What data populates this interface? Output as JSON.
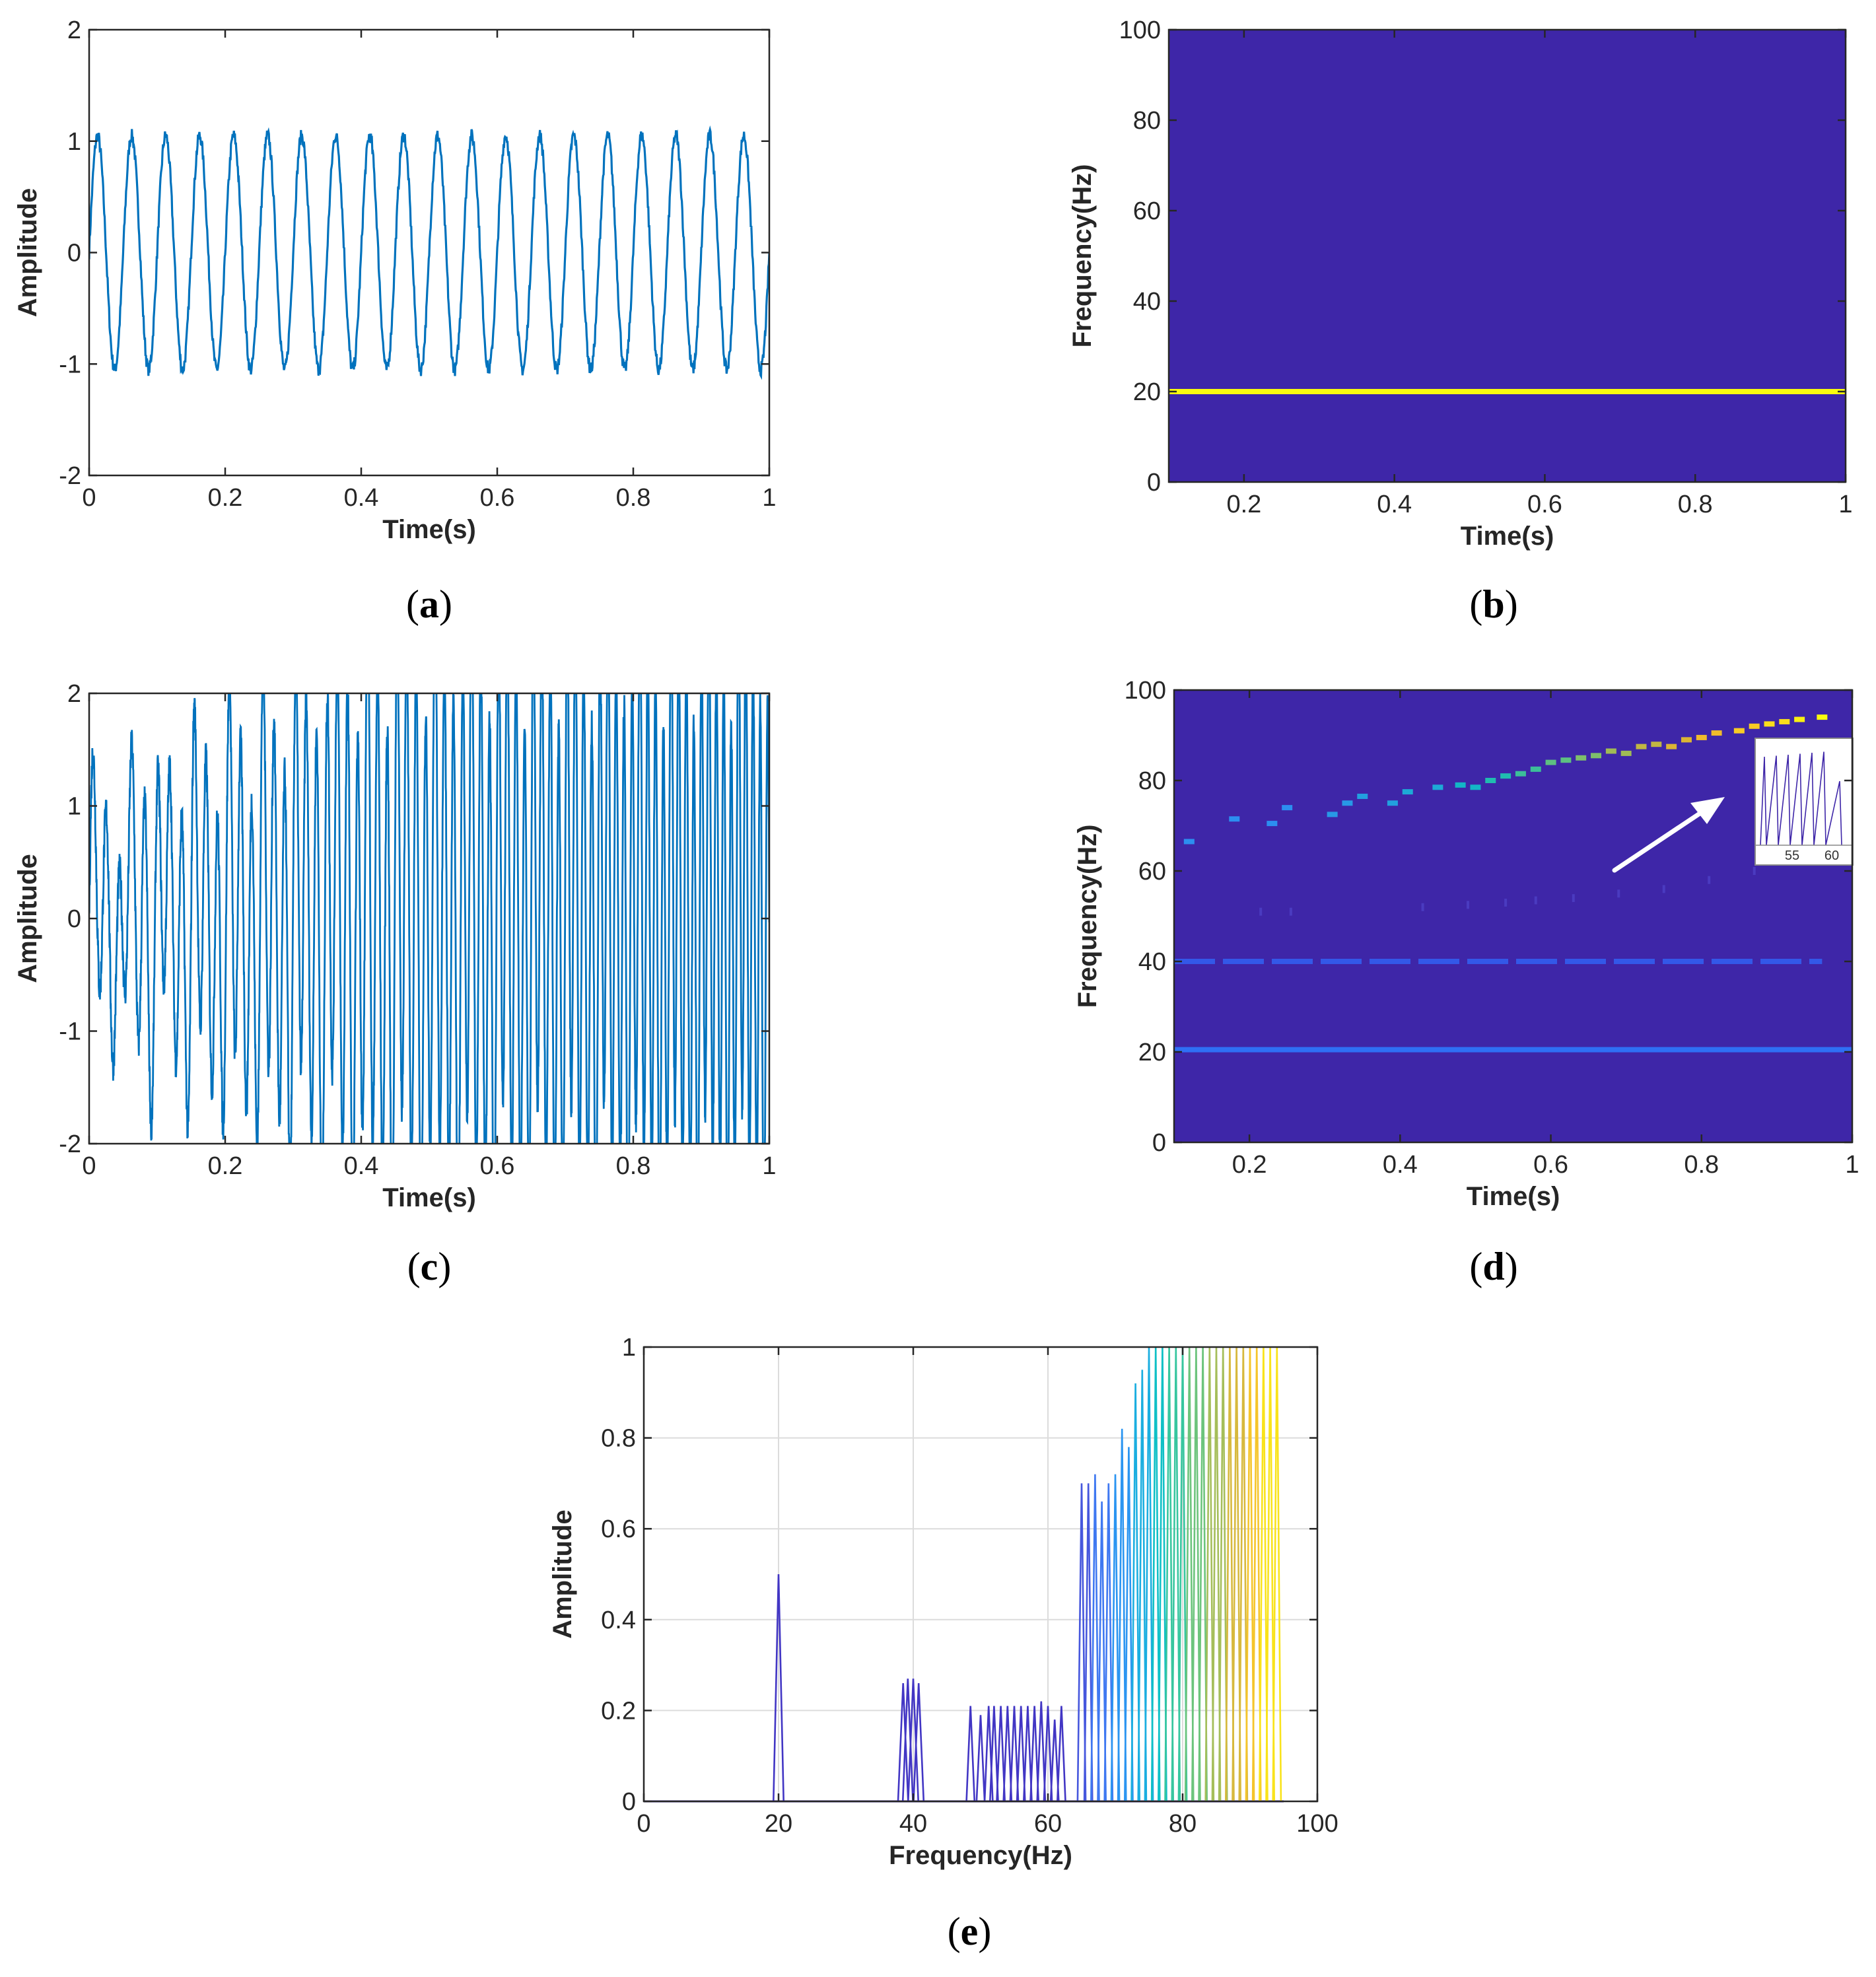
{
  "chart_data": [
    {
      "id": "a",
      "panel_label": "a",
      "type": "line",
      "description_series": "20 Hz sinusoid, amplitude ~1, with small noise",
      "signal": {
        "kind": "sine",
        "frequencies_hz": [
          20
        ],
        "amplitude": 1.05,
        "noise": 0.06
      },
      "x_range": [
        0,
        1
      ],
      "ylim": [
        -2,
        2
      ],
      "xlabel": "Time(s)",
      "ylabel": "Amplitude",
      "xticks": [
        "0",
        "0.2",
        "0.4",
        "0.6",
        "0.8",
        "1"
      ],
      "yticks": [
        "-2",
        "-1",
        "0",
        "1",
        "2"
      ],
      "line_color": "#0072BD"
    },
    {
      "id": "b",
      "panel_label": "b",
      "type": "heatmap",
      "x_range": [
        0.1,
        1
      ],
      "ylim": [
        0,
        100
      ],
      "xlabel": "Time(s)",
      "ylabel": "Frequency(Hz)",
      "xticks": [
        "0.2",
        "0.4",
        "0.6",
        "0.8",
        "1"
      ],
      "yticks": [
        "0",
        "20",
        "40",
        "60",
        "80",
        "100"
      ],
      "background_color": "#3E26A8",
      "lines": [
        {
          "frequency_hz": 20,
          "t_start": 0.1,
          "t_end": 1,
          "color": "#F9FB0E"
        }
      ]
    },
    {
      "id": "c",
      "panel_label": "c",
      "type": "line",
      "description_series": "multi-component signal: 20 Hz + 40 Hz + chirp rising from ~50 Hz to ~95 Hz, clipped at +/-2",
      "signal": {
        "kind": "multicomponent",
        "components": [
          {
            "f": 20,
            "a": 0.5
          },
          {
            "f": 40,
            "a": 0.27
          },
          {
            "chirp_f0": 50,
            "chirp_f1": 95,
            "a": 1.6
          }
        ],
        "noise": 0.15
      },
      "x_range": [
        0,
        1
      ],
      "ylim": [
        -2,
        2
      ],
      "xlabel": "Time(s)",
      "ylabel": "Amplitude",
      "xticks": [
        "0",
        "0.2",
        "0.4",
        "0.6",
        "0.8",
        "1"
      ],
      "yticks": [
        "-2",
        "-1",
        "0",
        "1",
        "2"
      ],
      "line_color": "#0072BD"
    },
    {
      "id": "d",
      "panel_label": "d",
      "type": "heatmap",
      "x_range": [
        0.1,
        1
      ],
      "ylim": [
        0,
        100
      ],
      "xlabel": "Time(s)",
      "ylabel": "Frequency(Hz)",
      "xticks": [
        "0.2",
        "0.4",
        "0.6",
        "0.8",
        "1"
      ],
      "yticks": [
        "0",
        "20",
        "40",
        "60",
        "80",
        "100"
      ],
      "background_color": "#3E26A8",
      "lines": [
        {
          "frequency_hz": 20.5,
          "t_start": 0.1,
          "t_end": 1,
          "color": "#2F6FF5"
        },
        {
          "frequency_hz": 40,
          "t_start": 0.1,
          "t_end": 0.96,
          "color": "#3358E8",
          "dashed": true
        }
      ],
      "chirp_segments": [
        {
          "t": 0.12,
          "f": 66.5,
          "color": "#2C8EF0"
        },
        {
          "t": 0.18,
          "f": 71.5,
          "color": "#2C8EF0"
        },
        {
          "t": 0.23,
          "f": 70.5,
          "color": "#2C8EF0"
        },
        {
          "t": 0.25,
          "f": 74.0,
          "color": "#2C8EF0"
        },
        {
          "t": 0.31,
          "f": 72.5,
          "color": "#2898E6"
        },
        {
          "t": 0.33,
          "f": 75.0,
          "color": "#2898E6"
        },
        {
          "t": 0.35,
          "f": 76.5,
          "color": "#22A0DF"
        },
        {
          "t": 0.39,
          "f": 75.0,
          "color": "#22A0DF"
        },
        {
          "t": 0.41,
          "f": 77.5,
          "color": "#1DAAD6"
        },
        {
          "t": 0.45,
          "f": 78.5,
          "color": "#1DAAD6"
        },
        {
          "t": 0.48,
          "f": 79.0,
          "color": "#13B5C6"
        },
        {
          "t": 0.5,
          "f": 78.5,
          "color": "#13B5C6"
        },
        {
          "t": 0.52,
          "f": 80.0,
          "color": "#20BCB0"
        },
        {
          "t": 0.54,
          "f": 81.0,
          "color": "#20BCB0"
        },
        {
          "t": 0.56,
          "f": 81.5,
          "color": "#3CBF99"
        },
        {
          "t": 0.58,
          "f": 82.5,
          "color": "#3CBF99"
        },
        {
          "t": 0.6,
          "f": 84.0,
          "color": "#5DC081"
        },
        {
          "t": 0.62,
          "f": 84.5,
          "color": "#5DC081"
        },
        {
          "t": 0.64,
          "f": 85.0,
          "color": "#7EBF6B"
        },
        {
          "t": 0.66,
          "f": 85.5,
          "color": "#7EBF6B"
        },
        {
          "t": 0.68,
          "f": 86.5,
          "color": "#A0BB55"
        },
        {
          "t": 0.7,
          "f": 86.0,
          "color": "#A0BB55"
        },
        {
          "t": 0.72,
          "f": 87.5,
          "color": "#C1B643"
        },
        {
          "t": 0.74,
          "f": 88.0,
          "color": "#C1B643"
        },
        {
          "t": 0.76,
          "f": 87.5,
          "color": "#DBB434"
        },
        {
          "t": 0.78,
          "f": 89.0,
          "color": "#DBB434"
        },
        {
          "t": 0.8,
          "f": 89.5,
          "color": "#F0BB2C"
        },
        {
          "t": 0.82,
          "f": 90.5,
          "color": "#F0BB2C"
        },
        {
          "t": 0.85,
          "f": 91.0,
          "color": "#F8CC25"
        },
        {
          "t": 0.87,
          "f": 92.0,
          "color": "#F8CC25"
        },
        {
          "t": 0.89,
          "f": 92.5,
          "color": "#F9DE1C"
        },
        {
          "t": 0.91,
          "f": 93.0,
          "color": "#F9DE1C"
        },
        {
          "t": 0.93,
          "f": 93.5,
          "color": "#F9F012"
        },
        {
          "t": 0.96,
          "f": 94.0,
          "color": "#F9FB0E"
        }
      ],
      "faint_marks": [
        {
          "t": 0.215,
          "f": 51
        },
        {
          "t": 0.255,
          "f": 51
        },
        {
          "t": 0.43,
          "f": 52
        },
        {
          "t": 0.49,
          "f": 52.5
        },
        {
          "t": 0.54,
          "f": 53
        },
        {
          "t": 0.58,
          "f": 53.5
        },
        {
          "t": 0.63,
          "f": 54
        },
        {
          "t": 0.69,
          "f": 55
        },
        {
          "t": 0.75,
          "f": 56
        },
        {
          "t": 0.81,
          "f": 58
        },
        {
          "t": 0.87,
          "f": 60
        }
      ],
      "inset": {
        "xticks": [
          "55",
          "60"
        ],
        "xlim": [
          51,
          62
        ],
        "peaks_x": [
          51.5,
          53,
          54.5,
          56,
          57.5,
          59,
          61
        ],
        "arrow": "white arrow from lower-left toward inset"
      }
    },
    {
      "id": "e",
      "panel_label": "e",
      "type": "line",
      "description_series": "spectral slices: narrow triangular peaks, colored by time (parula colormap)",
      "xlim": [
        0,
        100
      ],
      "ylim": [
        0,
        1
      ],
      "grid": true,
      "xlabel": "Frequency(Hz)",
      "ylabel": "Amplitude",
      "xticks": [
        "0",
        "20",
        "40",
        "60",
        "80",
        "100"
      ],
      "yticks": [
        "0",
        "0.2",
        "0.4",
        "0.6",
        "0.8",
        "1"
      ],
      "peaks": [
        {
          "f": 20,
          "a": 0.5
        },
        {
          "f": 38.5,
          "a": 0.26
        },
        {
          "f": 39.2,
          "a": 0.27
        },
        {
          "f": 40,
          "a": 0.27
        },
        {
          "f": 40.8,
          "a": 0.26
        },
        {
          "f": 48.5,
          "a": 0.21
        },
        {
          "f": 50,
          "a": 0.19
        },
        {
          "f": 51.2,
          "a": 0.21
        },
        {
          "f": 52,
          "a": 0.21
        },
        {
          "f": 53,
          "a": 0.21
        },
        {
          "f": 54,
          "a": 0.21
        },
        {
          "f": 55,
          "a": 0.21
        },
        {
          "f": 56,
          "a": 0.21
        },
        {
          "f": 57,
          "a": 0.21
        },
        {
          "f": 58,
          "a": 0.21
        },
        {
          "f": 59,
          "a": 0.22
        },
        {
          "f": 60,
          "a": 0.21
        },
        {
          "f": 61,
          "a": 0.18
        },
        {
          "f": 62,
          "a": 0.21
        },
        {
          "f": 65,
          "a": 0.7
        },
        {
          "f": 66,
          "a": 0.7
        },
        {
          "f": 67,
          "a": 0.72
        },
        {
          "f": 68,
          "a": 0.66
        },
        {
          "f": 69,
          "a": 0.7
        },
        {
          "f": 70,
          "a": 0.72
        },
        {
          "f": 71,
          "a": 0.82
        },
        {
          "f": 72,
          "a": 0.78
        },
        {
          "f": 73,
          "a": 0.92
        },
        {
          "f": 74,
          "a": 0.95
        },
        {
          "f": 75,
          "a": 1.0
        },
        {
          "f": 76,
          "a": 1.0
        },
        {
          "f": 77,
          "a": 1.0
        },
        {
          "f": 78,
          "a": 1.0
        },
        {
          "f": 79,
          "a": 1.0
        },
        {
          "f": 80,
          "a": 1.0
        },
        {
          "f": 81,
          "a": 1.0
        },
        {
          "f": 82,
          "a": 1.0
        },
        {
          "f": 83,
          "a": 1.0
        },
        {
          "f": 84,
          "a": 1.0
        },
        {
          "f": 85,
          "a": 1.0
        },
        {
          "f": 86,
          "a": 1.0
        },
        {
          "f": 87,
          "a": 1.0
        },
        {
          "f": 88,
          "a": 1.0
        },
        {
          "f": 89,
          "a": 1.0
        },
        {
          "f": 90,
          "a": 1.0
        },
        {
          "f": 91,
          "a": 1.0
        },
        {
          "f": 92,
          "a": 1.0
        },
        {
          "f": 93,
          "a": 1.0
        },
        {
          "f": 94,
          "a": 1.0
        }
      ]
    }
  ]
}
